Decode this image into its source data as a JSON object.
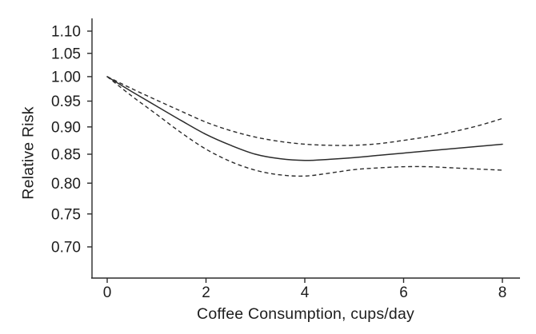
{
  "chart_data": {
    "type": "line",
    "title": "",
    "xlabel": "Coffee Consumption, cups/day",
    "ylabel": "Relative Risk",
    "y_scale": "log",
    "xlim": [
      0,
      8.35
    ],
    "ylim": [
      0.655,
      1.13
    ],
    "grid": false,
    "legend": "none",
    "x_tick_labels": [
      "0",
      "2",
      "4",
      "6",
      "8"
    ],
    "x_tick_values": [
      0,
      2,
      4,
      6,
      8
    ],
    "y_tick_labels": [
      "1.10",
      "1.05",
      "1.00",
      "0.95",
      "0.90",
      "0.85",
      "0.80",
      "0.75",
      "0.70"
    ],
    "y_tick_values": [
      1.1,
      1.05,
      1.0,
      0.95,
      0.9,
      0.85,
      0.8,
      0.75,
      0.7
    ],
    "x": [
      0,
      0.5,
      1,
      1.5,
      2,
      2.5,
      3,
      3.5,
      4,
      4.5,
      5,
      5.5,
      6,
      6.5,
      7,
      7.5,
      8
    ],
    "series": [
      {
        "name": "solid",
        "style": "solid",
        "values": [
          1.0,
          0.969,
          0.94,
          0.912,
          0.886,
          0.866,
          0.85,
          0.842,
          0.839,
          0.841,
          0.844,
          0.848,
          0.852,
          0.856,
          0.86,
          0.864,
          0.868
        ]
      },
      {
        "name": "dashed_upper",
        "style": "dashed",
        "values": [
          1.0,
          0.975,
          0.952,
          0.93,
          0.909,
          0.893,
          0.881,
          0.873,
          0.868,
          0.866,
          0.866,
          0.869,
          0.875,
          0.882,
          0.891,
          0.902,
          0.916
        ]
      },
      {
        "name": "dashed_lower",
        "style": "dashed",
        "values": [
          1.0,
          0.96,
          0.924,
          0.889,
          0.859,
          0.837,
          0.822,
          0.814,
          0.812,
          0.817,
          0.823,
          0.826,
          0.828,
          0.828,
          0.826,
          0.824,
          0.822
        ]
      }
    ],
    "colors": {
      "line": "#2b2b2b",
      "text": "#1d1d1d",
      "background": "#ffffff"
    }
  }
}
